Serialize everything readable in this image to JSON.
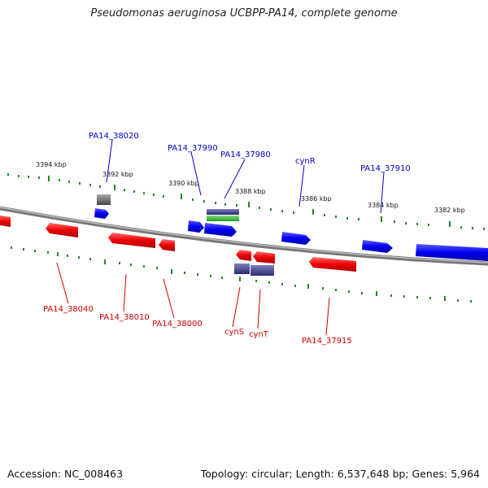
{
  "title": "Pseudomonas aeruginosa UCBPP-PA14, complete genome",
  "footer": {
    "accession": "Accession: NC_008463",
    "topology": "Topology: circular; Length: 6,537,648 bp; Genes: 5,964"
  },
  "scale_labels": [
    "3394 kbp",
    "3392 kbp",
    "3390 kbp",
    "3388 kbp",
    "3386 kbp",
    "3384 kbp",
    "3382 kbp"
  ],
  "top_gene_labels": [
    "PA14_38020",
    "PA14_37990",
    "PA14_37980",
    "cynR",
    "PA14_37910"
  ],
  "bottom_gene_labels": [
    "PA14_38040",
    "PA14_38010",
    "PA14_38000",
    "cynS",
    "cynT",
    "PA14_37915"
  ],
  "colors": {
    "forward": "#0000ee",
    "reverse": "#ee0000",
    "other": "#555555",
    "rna": "#3a3a8a",
    "highlight": "#33bb33",
    "ticks": "#228822",
    "backbone": "#888888"
  }
}
